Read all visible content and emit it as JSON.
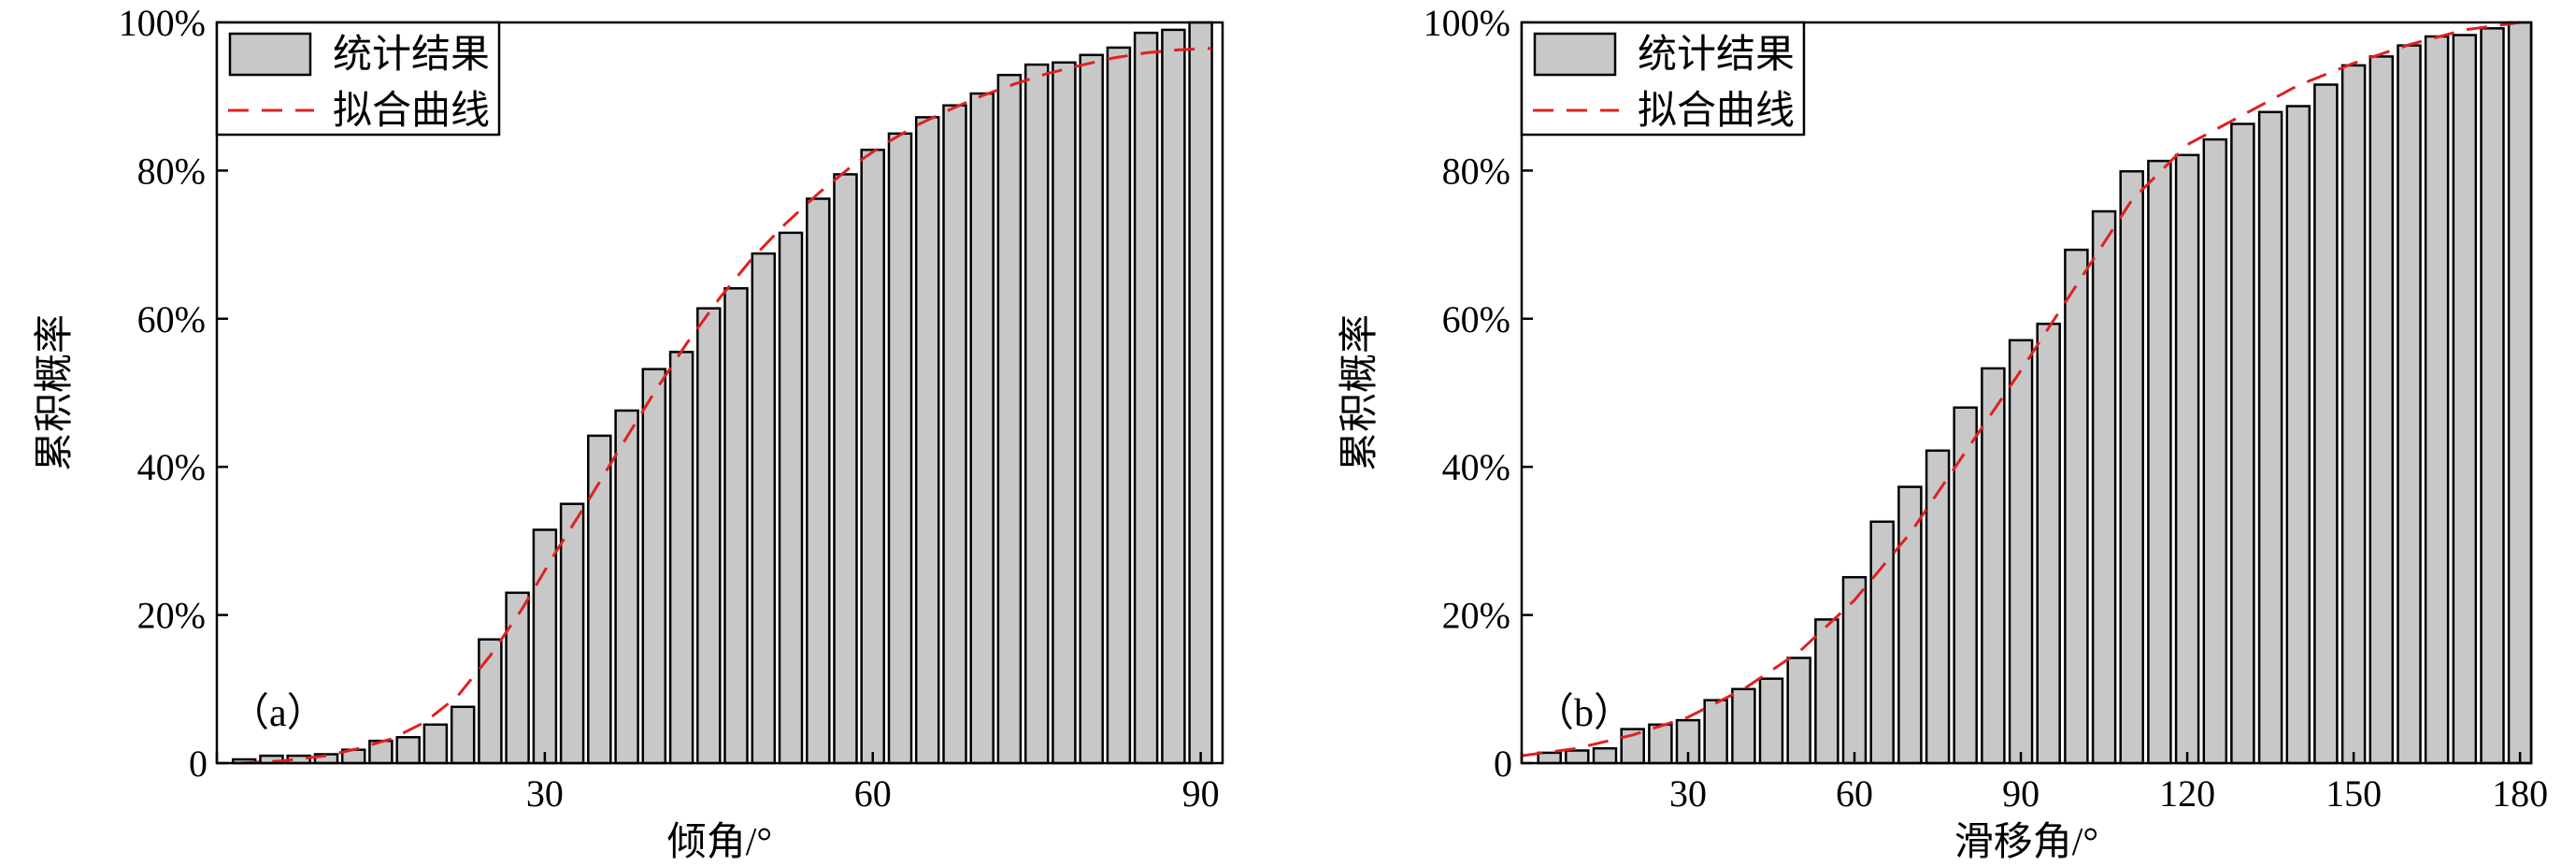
{
  "chart_data": [
    {
      "type": "bar",
      "panel_label": "（a）",
      "xlabel": "倾角/°",
      "ylabel": "累积概率",
      "xlim": [
        0,
        92
      ],
      "ylim": [
        0,
        100
      ],
      "xticks": [
        0,
        30,
        60,
        90
      ],
      "xtick_labels": [
        "0",
        "30",
        "60",
        "90"
      ],
      "yticks": [
        0,
        20,
        40,
        60,
        80,
        100
      ],
      "ytick_labels": [
        "0",
        "20%",
        "40%",
        "60%",
        "80%",
        "100%"
      ],
      "legend": {
        "position": "top-left",
        "entries": [
          "统计结果",
          "拟合曲线"
        ]
      },
      "bar_x": [
        2.5,
        5,
        7.5,
        10,
        12.5,
        15,
        17.5,
        20,
        22.5,
        25,
        27.5,
        30,
        32.5,
        35,
        37.5,
        40,
        42.5,
        45,
        47.5,
        50,
        52.5,
        55,
        57.5,
        60,
        62.5,
        65,
        67.5,
        70,
        72.5,
        75,
        77.5,
        80,
        82.5,
        85,
        87.5,
        90
      ],
      "series": [
        {
          "name": "统计结果",
          "kind": "bar",
          "color": "#c8c8c8",
          "values": [
            0.5,
            1,
            1,
            1.2,
            1.8,
            3,
            3.5,
            5.2,
            7.6,
            16.7,
            23,
            31.5,
            35,
            44.2,
            47.6,
            53.2,
            55.5,
            61.4,
            64.1,
            68.8,
            71.6,
            76.2,
            79.5,
            82.8,
            85,
            87.2,
            88.8,
            90.4,
            92.9,
            94.3,
            94.6,
            95.6,
            96.6,
            98.6,
            99,
            100
          ]
        },
        {
          "name": "拟合曲线",
          "kind": "line",
          "color": "#e02020",
          "dashed": true,
          "x": [
            2,
            6,
            10,
            13,
            16,
            19,
            22,
            25,
            28,
            31,
            34,
            37,
            40,
            43,
            46,
            49,
            52,
            55,
            58,
            61,
            64,
            67,
            70,
            73,
            76,
            79,
            82,
            85,
            88,
            91
          ],
          "y": [
            0,
            0.3,
            1,
            2,
            3.3,
            5.5,
            9,
            14.5,
            21,
            28.5,
            35.5,
            42.8,
            50,
            56.7,
            62.8,
            68.2,
            72.8,
            76.9,
            80.5,
            83.5,
            86.1,
            88.2,
            90.1,
            91.7,
            93.1,
            94.2,
            95.2,
            95.9,
            96.3,
            96.5
          ]
        }
      ]
    },
    {
      "type": "bar",
      "panel_label": "（b）",
      "xlabel": "滑移角/°",
      "ylabel": "累积概率",
      "xlim": [
        0,
        182
      ],
      "ylim": [
        0,
        100
      ],
      "xticks": [
        0,
        30,
        60,
        90,
        120,
        150,
        180
      ],
      "xtick_labels": [
        "0",
        "30",
        "60",
        "90",
        "120",
        "150",
        "180"
      ],
      "yticks": [
        0,
        20,
        40,
        60,
        80,
        100
      ],
      "ytick_labels": [
        "0",
        "20%",
        "40%",
        "60%",
        "80%",
        "100%"
      ],
      "legend": {
        "position": "top-left",
        "entries": [
          "统计结果",
          "拟合曲线"
        ]
      },
      "bar_x": [
        5,
        10,
        15,
        20,
        25,
        30,
        35,
        40,
        45,
        50,
        55,
        60,
        65,
        70,
        75,
        80,
        85,
        90,
        95,
        100,
        105,
        110,
        115,
        120,
        125,
        130,
        135,
        140,
        145,
        150,
        155,
        160,
        165,
        170,
        175,
        180
      ],
      "series": [
        {
          "name": "统计结果",
          "kind": "bar",
          "color": "#c8c8c8",
          "values": [
            1.4,
            1.7,
            2,
            4.6,
            5.2,
            5.8,
            8.5,
            10,
            11.4,
            14.2,
            19.4,
            25.1,
            32.6,
            37.3,
            42.2,
            48,
            53.3,
            57.1,
            59.3,
            69.3,
            74.5,
            79.9,
            81.3,
            82.1,
            84.2,
            86.3,
            87.9,
            88.7,
            91.6,
            94.2,
            95.4,
            96.9,
            98.1,
            98.3,
            99.2,
            100
          ]
        },
        {
          "name": "拟合曲线",
          "kind": "line",
          "color": "#e02020",
          "dashed": true,
          "x": [
            0,
            10,
            20,
            30,
            40,
            50,
            60,
            70,
            80,
            90,
            100,
            110,
            120,
            130,
            140,
            150,
            160,
            170,
            180
          ],
          "y": [
            1,
            2,
            3.8,
            6.2,
            10,
            15,
            22,
            31,
            42,
            53,
            64.5,
            76,
            83.5,
            87.5,
            91.5,
            94.5,
            97,
            99,
            100
          ]
        }
      ]
    }
  ]
}
